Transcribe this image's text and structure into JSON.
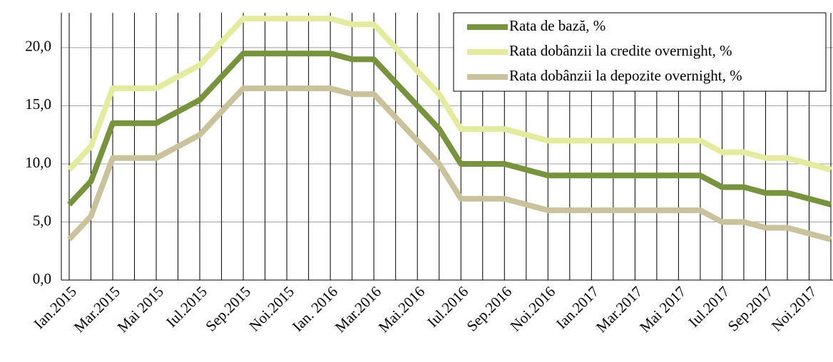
{
  "chart_data": {
    "type": "line",
    "categories": [
      "Ian.2015",
      null,
      "Mar.2015",
      null,
      "Mai 2015",
      null,
      "Iul.2015",
      null,
      "Sep.2015",
      null,
      "Noi.2015",
      null,
      "Ian. 2016",
      null,
      "Mar.2016",
      null,
      "Mai.2016",
      null,
      "Iul.2016",
      null,
      "Sep.2016",
      null,
      "Noi.2016",
      null,
      "Ian.2017",
      null,
      "Mar.2017",
      null,
      "Mai 2017",
      null,
      "Iul.2017",
      null,
      "Sep.2017",
      null,
      "Noi.2017",
      null
    ],
    "series": [
      {
        "name": "Rata de bază, %",
        "color": "#77933c",
        "values": [
          6.5,
          8.5,
          13.5,
          13.5,
          13.5,
          14.5,
          15.5,
          17.5,
          19.5,
          19.5,
          19.5,
          19.5,
          19.5,
          19,
          19,
          17,
          15,
          13,
          10,
          10,
          10,
          9.5,
          9,
          9,
          9,
          9,
          9,
          9,
          9,
          9,
          8,
          8,
          7.5,
          7.5,
          7,
          6.5
        ]
      },
      {
        "name": "Rata dobânzii la credite overnight, %",
        "color": "#e4eb9c",
        "values": [
          9.5,
          11.5,
          16.5,
          16.5,
          16.5,
          17.5,
          18.5,
          20.5,
          22.5,
          22.5,
          22.5,
          22.5,
          22.5,
          22,
          22,
          20,
          18,
          16,
          13,
          13,
          13,
          12.5,
          12,
          12,
          12,
          12,
          12,
          12,
          12,
          12,
          11,
          11,
          10.5,
          10.5,
          10,
          9.5
        ]
      },
      {
        "name": "Rata dobânzii la depozite overnight,  %",
        "color": "#c9c29a",
        "values": [
          3.5,
          5.5,
          10.5,
          10.5,
          10.5,
          11.5,
          12.5,
          14.5,
          16.5,
          16.5,
          16.5,
          16.5,
          16.5,
          16,
          16,
          14,
          12,
          10,
          7,
          7,
          7,
          6.5,
          6,
          6,
          6,
          6,
          6,
          6,
          6,
          6,
          5,
          5,
          4.5,
          4.5,
          4,
          3.5
        ]
      }
    ],
    "ylim": [
      0,
      23
    ],
    "yticks": [
      {
        "value": 0,
        "label": "0,0"
      },
      {
        "value": 5,
        "label": "5,0"
      },
      {
        "value": 10,
        "label": "10,0"
      },
      {
        "value": 15,
        "label": "15,0"
      },
      {
        "value": 20,
        "label": "20,0"
      }
    ],
    "grid": true,
    "legend": "upper right"
  }
}
